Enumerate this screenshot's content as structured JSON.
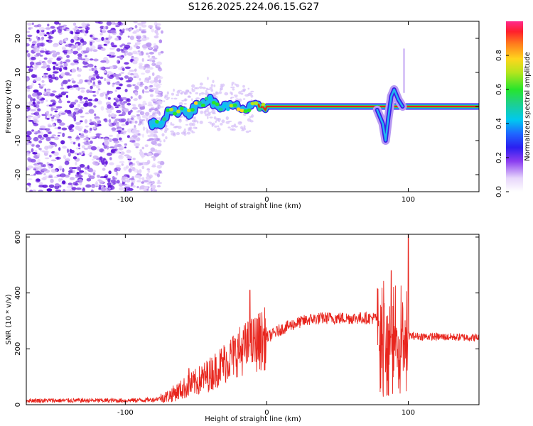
{
  "title": "S126.2025.224.06.15.G27",
  "colors": {
    "trace": "#e8251d",
    "speckle": "#6a1fe0",
    "frame": "#000000"
  },
  "chart_data": [
    {
      "type": "heatmap",
      "xlabel": "Height of straight line (km)",
      "ylabel": "Frequency (Hz)",
      "xlim": [
        -170,
        150
      ],
      "ylim": [
        -25,
        25
      ],
      "xticks": [
        -100,
        0,
        100
      ],
      "yticks": [
        -20,
        -10,
        0,
        10,
        20
      ],
      "colorbar": {
        "label": "Normalized spectral amplitude",
        "range": [
          0,
          1
        ],
        "ticks": [
          0.0,
          0.2,
          0.4,
          0.6,
          0.8
        ],
        "colormap": "rainbow"
      },
      "features": {
        "noise_region_x": [
          -170,
          -80
        ],
        "ridge_centerline": [
          {
            "x": -80,
            "y": -5
          },
          {
            "x": -75,
            "y": -5
          },
          {
            "x": -70,
            "y": -2
          },
          {
            "x": -60,
            "y": -1
          },
          {
            "x": -55,
            "y": -2
          },
          {
            "x": -50,
            "y": 0
          },
          {
            "x": -45,
            "y": 1
          },
          {
            "x": -40,
            "y": 2
          },
          {
            "x": -35,
            "y": 0
          },
          {
            "x": -30,
            "y": 0
          },
          {
            "x": -25,
            "y": 0
          },
          {
            "x": -20,
            "y": 0
          },
          {
            "x": -15,
            "y": -1
          },
          {
            "x": -10,
            "y": 0
          },
          {
            "x": 0,
            "y": 0
          },
          {
            "x": 150,
            "y": 0
          }
        ],
        "disturbance": [
          {
            "x": 78,
            "y": -1
          },
          {
            "x": 82,
            "y": -5
          },
          {
            "x": 84,
            "y": -10
          },
          {
            "x": 86,
            "y": -3
          },
          {
            "x": 88,
            "y": 3
          },
          {
            "x": 90,
            "y": 5
          },
          {
            "x": 93,
            "y": 2
          },
          {
            "x": 96,
            "y": 0
          }
        ]
      }
    },
    {
      "type": "line",
      "xlabel": "Height of straight line (km)",
      "ylabel": "SNR (10 * v/v)",
      "xlim": [
        -170,
        150
      ],
      "ylim": [
        0,
        610
      ],
      "xticks": [
        -100,
        0,
        100
      ],
      "yticks": [
        0,
        200,
        400,
        600
      ],
      "baseline": [
        {
          "x": -170,
          "y": 15
        },
        {
          "x": -100,
          "y": 15
        },
        {
          "x": -80,
          "y": 18
        },
        {
          "x": -70,
          "y": 30
        },
        {
          "x": -60,
          "y": 55
        },
        {
          "x": -50,
          "y": 80
        },
        {
          "x": -40,
          "y": 110
        },
        {
          "x": -30,
          "y": 150
        },
        {
          "x": -20,
          "y": 190
        },
        {
          "x": -10,
          "y": 215
        },
        {
          "x": 0,
          "y": 240
        },
        {
          "x": 10,
          "y": 270
        },
        {
          "x": 20,
          "y": 290
        },
        {
          "x": 30,
          "y": 305
        },
        {
          "x": 40,
          "y": 310
        },
        {
          "x": 60,
          "y": 310
        },
        {
          "x": 78,
          "y": 310
        },
        {
          "x": 85,
          "y": 250
        },
        {
          "x": 95,
          "y": 250
        },
        {
          "x": 105,
          "y": 245
        },
        {
          "x": 150,
          "y": 240
        }
      ],
      "spikes": [
        {
          "x": -55,
          "y": 130
        },
        {
          "x": -12,
          "y": 410
        },
        {
          "x": 88,
          "y": 480
        },
        {
          "x": 100,
          "y": 610
        }
      ]
    }
  ]
}
